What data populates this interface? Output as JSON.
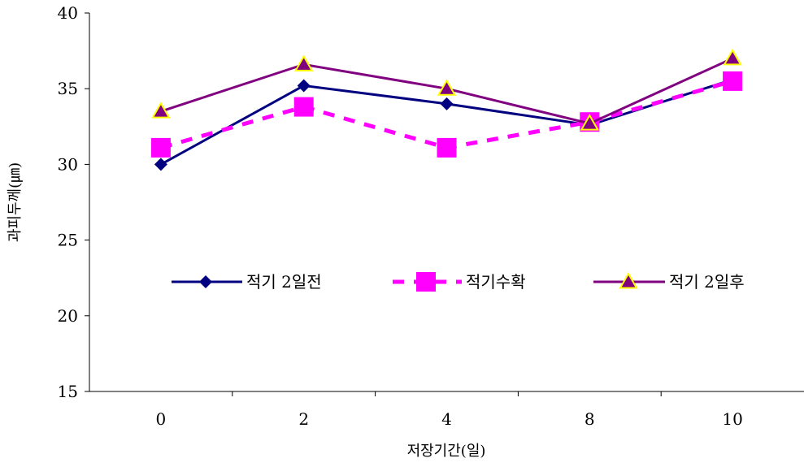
{
  "chart_data": {
    "type": "line",
    "categories": [
      "0",
      "2",
      "4",
      "8",
      "10"
    ],
    "xlabel": "저장기간(일)",
    "ylabel": "과피두께(㎛)",
    "ylim": [
      15,
      40
    ],
    "yticks": [
      "15",
      "20",
      "25",
      "30",
      "35",
      "40"
    ],
    "grid": false,
    "legend_position": "center",
    "series": [
      {
        "name": "적기 2일전",
        "values": [
          30.0,
          35.2,
          34.0,
          32.6,
          35.6
        ],
        "color": "#000080",
        "marker": "diamond",
        "dash": "solid"
      },
      {
        "name": "적기수확",
        "values": [
          31.1,
          33.8,
          31.1,
          32.8,
          35.5
        ],
        "color": "#ff00ff",
        "marker": "square",
        "dash": "dashed"
      },
      {
        "name": "적기 2일후",
        "values": [
          33.5,
          36.6,
          35.0,
          32.7,
          37.0
        ],
        "color": "#800080",
        "marker": "triangle",
        "marker_fill": "#800080",
        "marker_stroke": "#ffff00",
        "dash": "solid"
      }
    ]
  }
}
